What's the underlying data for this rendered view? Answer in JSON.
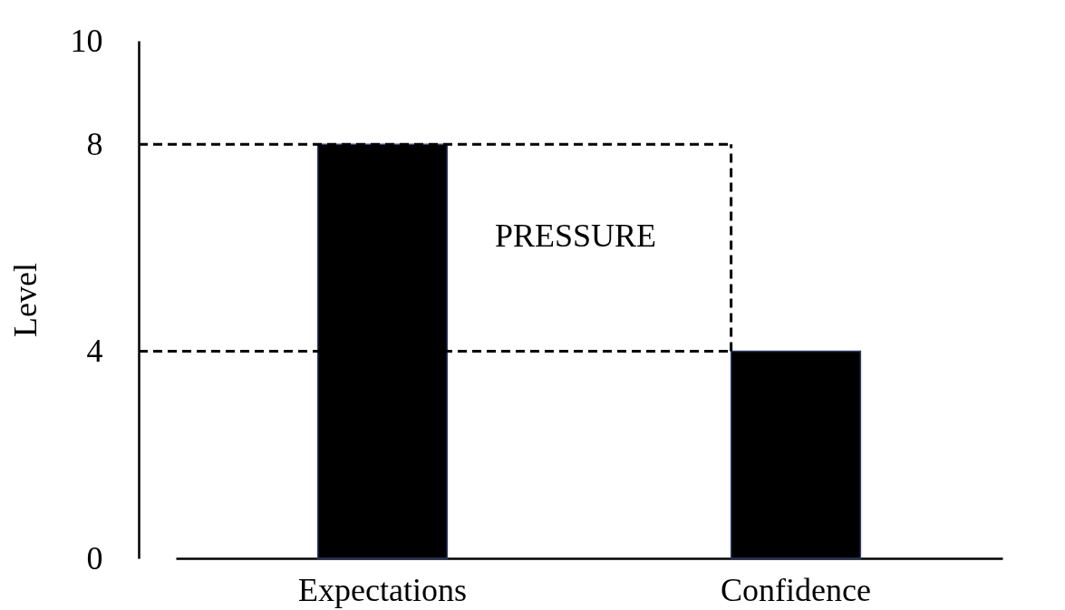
{
  "chart_data": {
    "type": "bar",
    "ylabel": "Level",
    "categories": [
      "Expectations",
      "Confidence"
    ],
    "values": [
      8,
      4
    ],
    "color": "#000000",
    "ylim": [
      0,
      10
    ],
    "yticks": [
      0,
      4,
      8,
      10
    ],
    "grid": false,
    "ref_lines": [
      {
        "axis": "y",
        "value": 8,
        "line_style": "dashed",
        "color": "#000000"
      },
      {
        "axis": "y",
        "value": 4,
        "line_style": "dashed",
        "color": "#000000"
      }
    ],
    "annotations": [
      "PRESSURE"
    ]
  }
}
